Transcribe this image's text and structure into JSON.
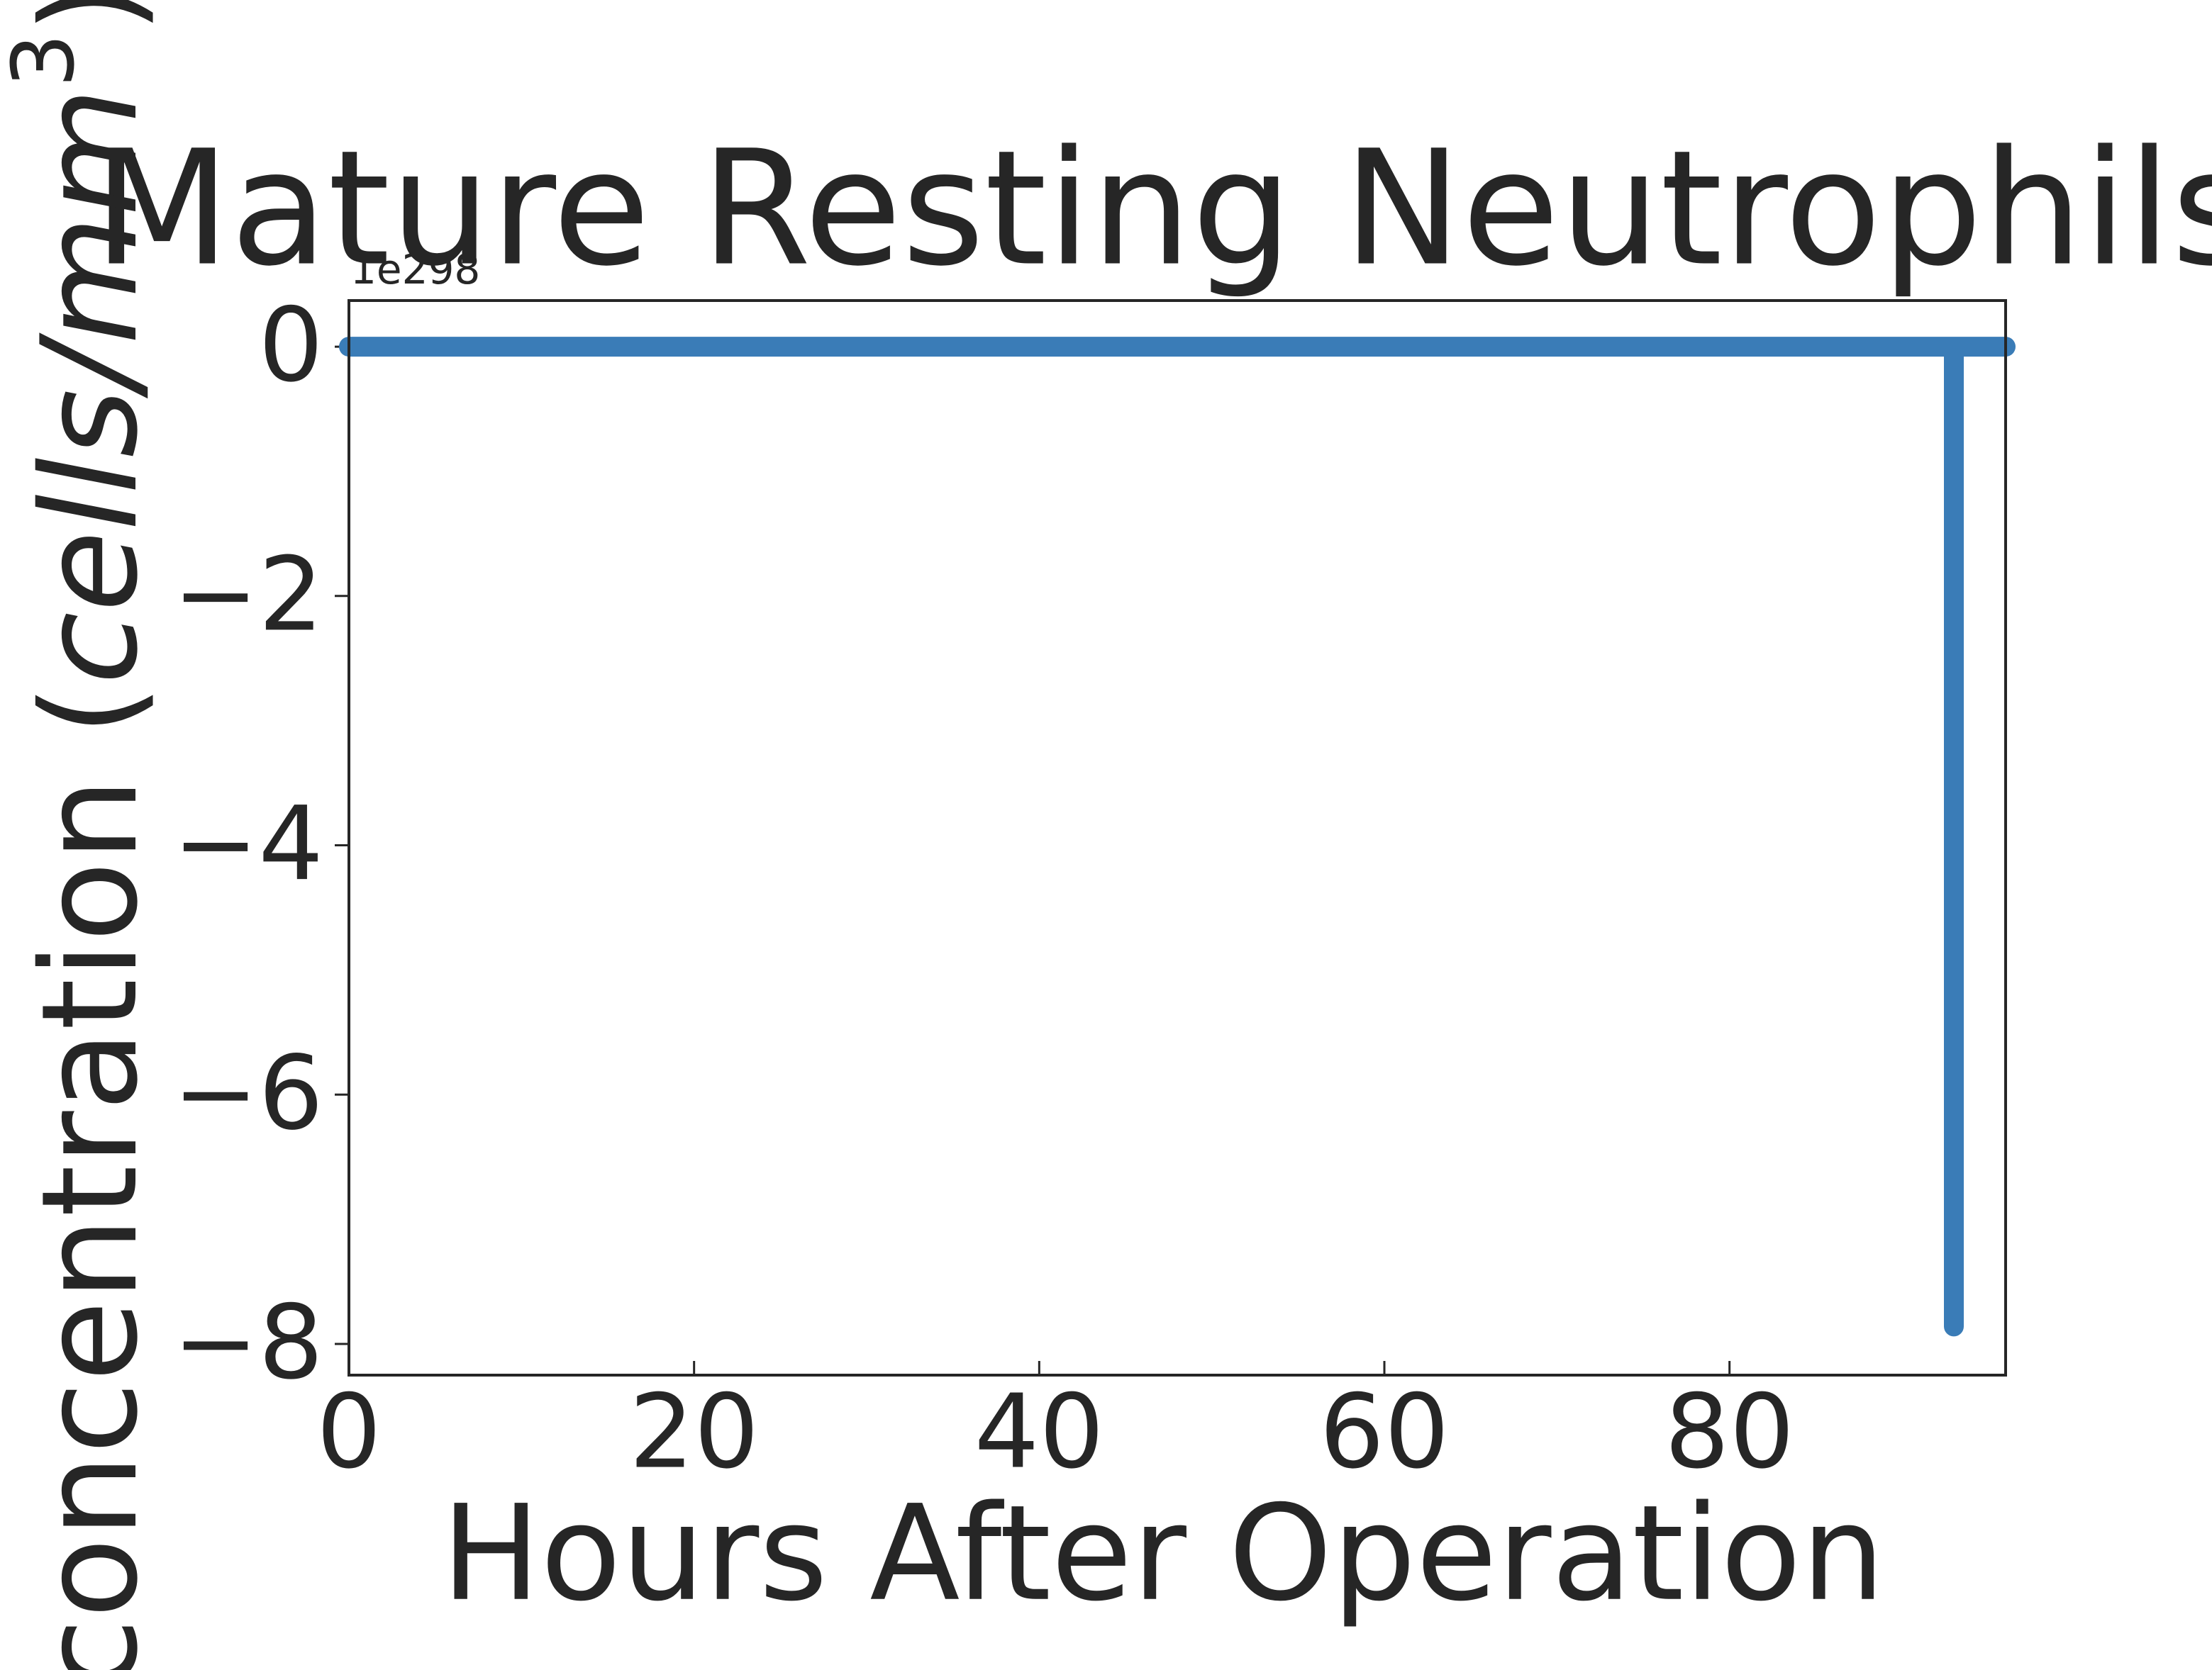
{
  "chart_data": {
    "type": "line",
    "title": "Mature Resting Neutrophils",
    "x_label": "Hours After Operation",
    "y_label": [
      "concentration (",
      "cells/mm",
      "3",
      ")"
    ],
    "y_offset_text": "1e298",
    "x": [
      0,
      93,
      93,
      93,
      96
    ],
    "series": [
      {
        "name": "Mature Resting Neutrophils",
        "color": "#3a7cb7",
        "values": [
          0,
          0,
          -7.86,
          0,
          0
        ]
      }
    ],
    "xlim": [
      0,
      96
    ],
    "xticks": [
      0,
      20,
      40,
      60,
      80
    ],
    "ylim": [
      -8.25,
      0.37
    ],
    "yticks": [
      {
        "value": 0,
        "label": "0"
      },
      {
        "value": -2,
        "label": "−2"
      },
      {
        "value": -4,
        "label": "−4"
      },
      {
        "value": -6,
        "label": "−6"
      },
      {
        "value": -8,
        "label": "−8"
      }
    ],
    "grid": false
  }
}
